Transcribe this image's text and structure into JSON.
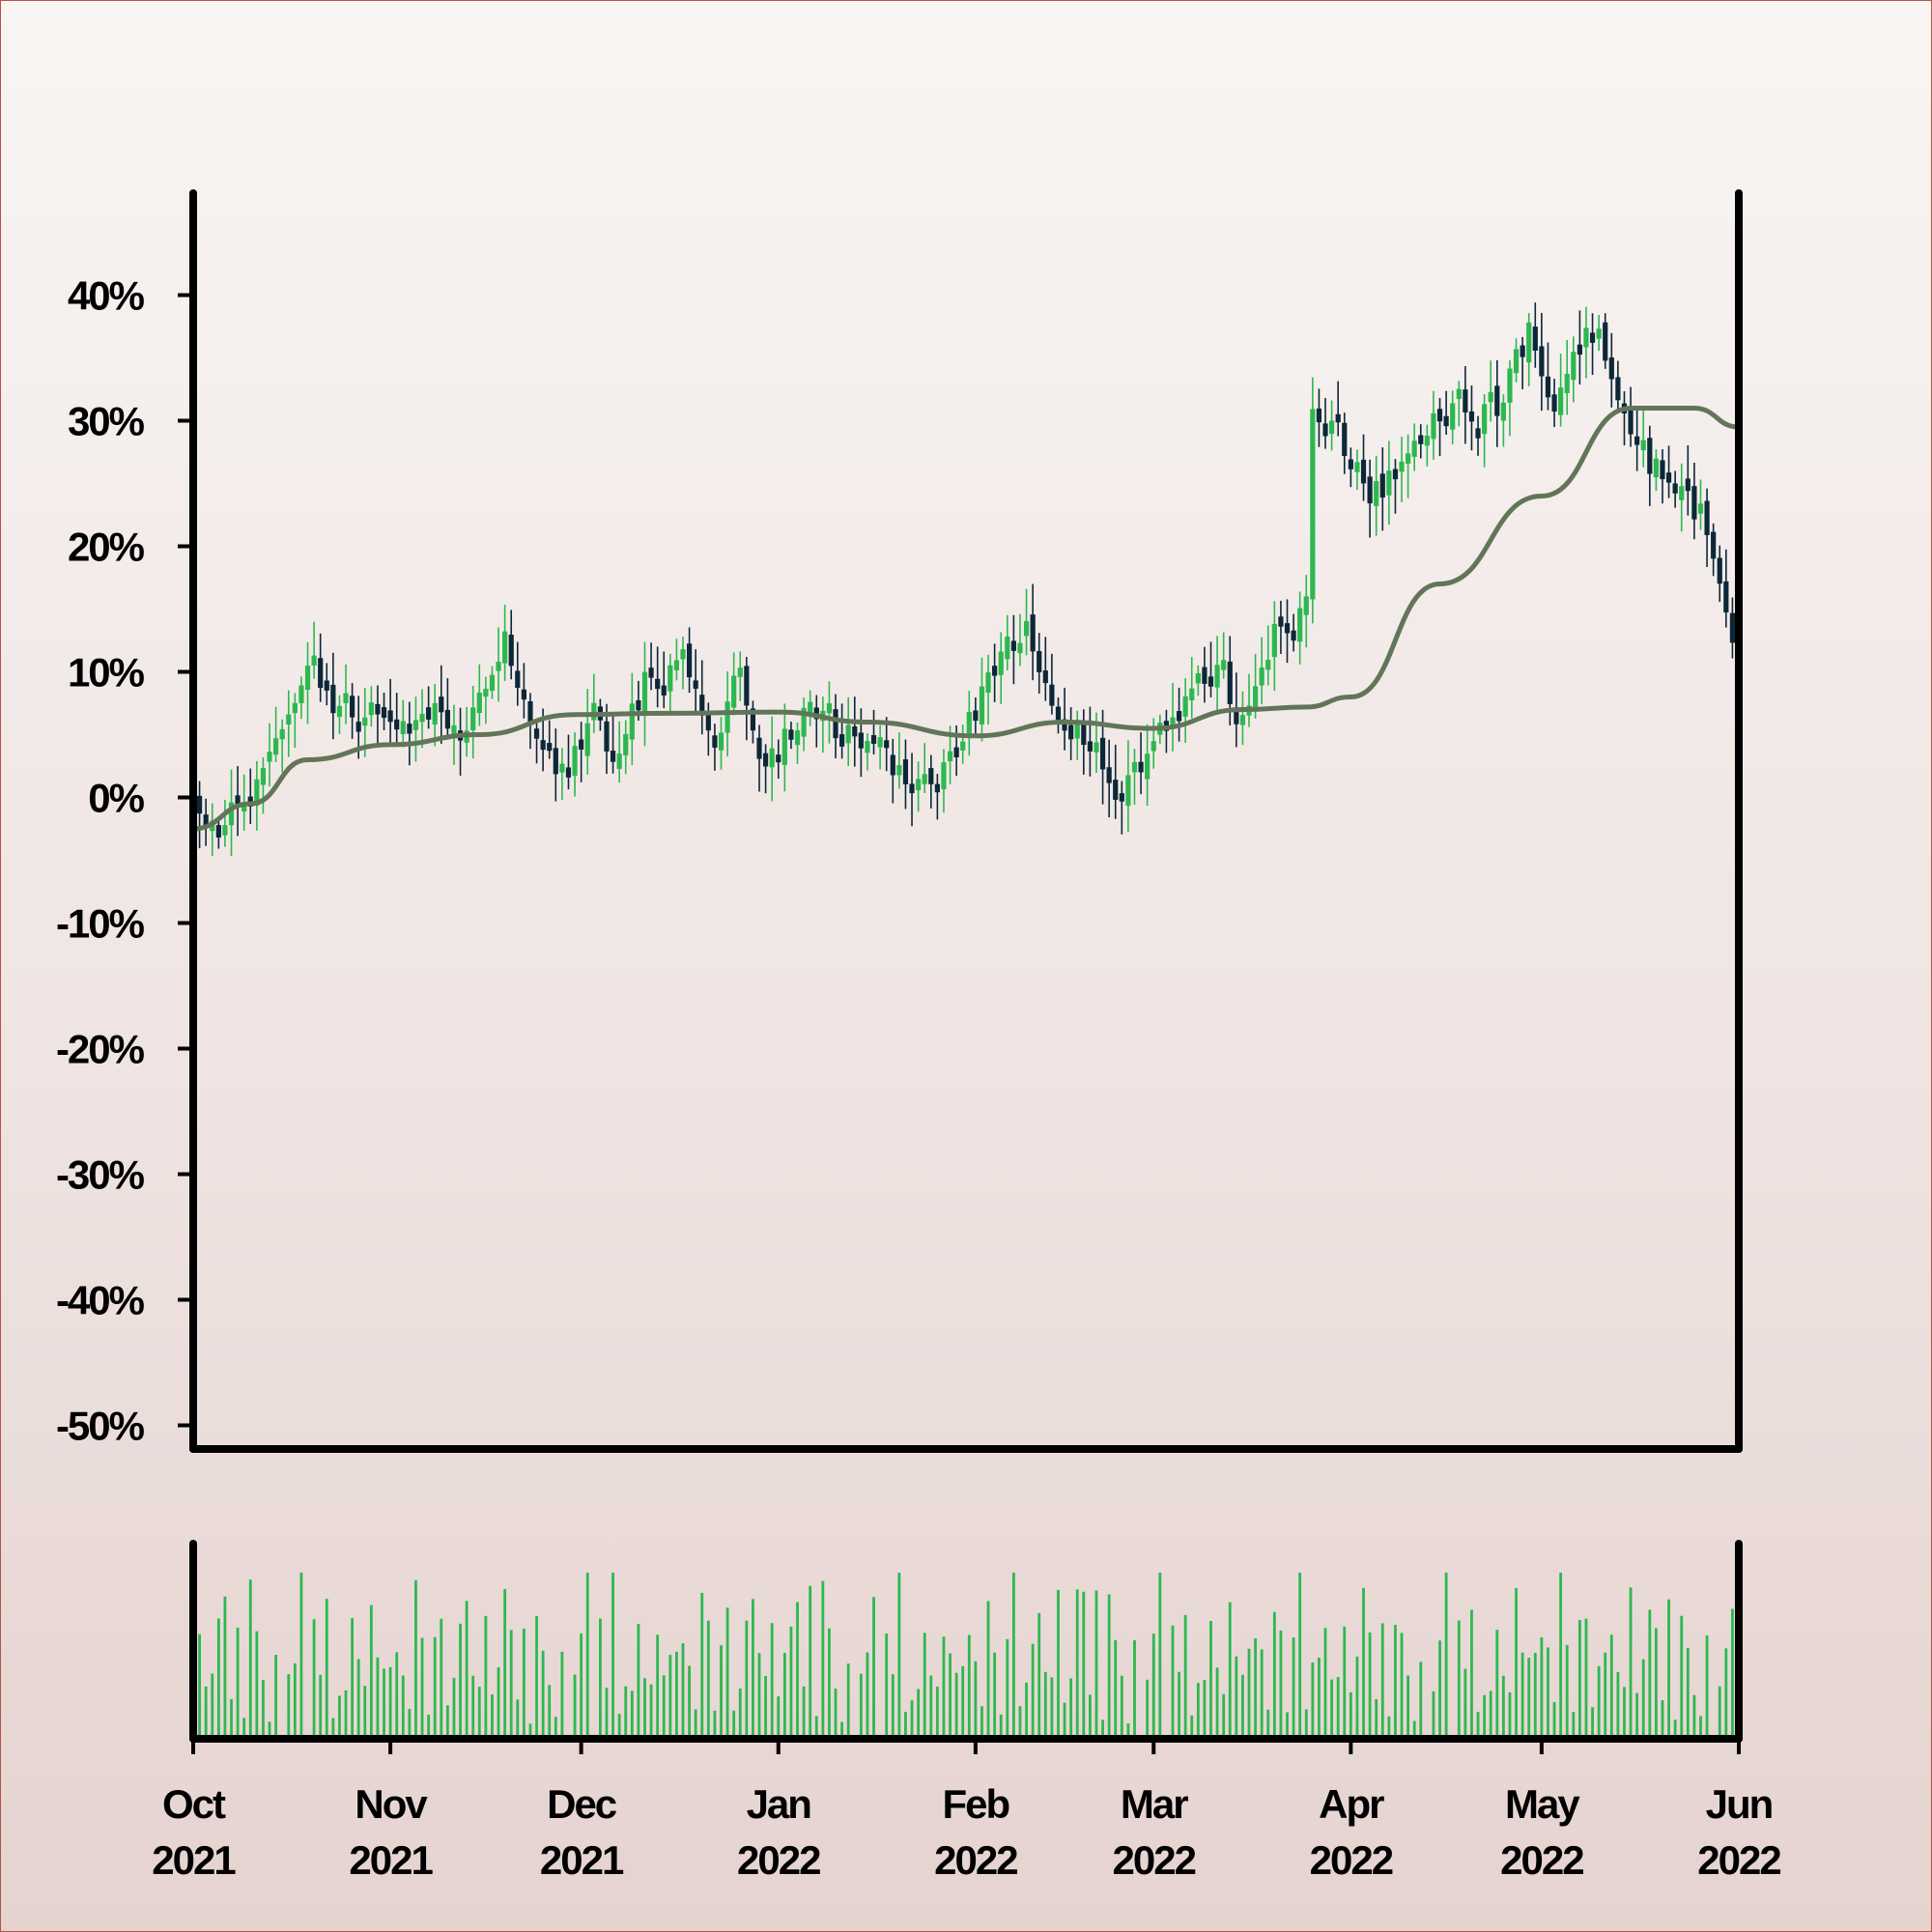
{
  "chart_data": {
    "type": "candlestick",
    "title": "",
    "xlabel": "",
    "ylabel": "",
    "y_axis_format": "percent",
    "ylim": [
      -55,
      46
    ],
    "y_ticks": [
      "40%",
      "30%",
      "20%",
      "10%",
      "0%",
      "-10%",
      "-20%",
      "-30%",
      "-40%",
      "-50%"
    ],
    "y_tick_values": [
      40,
      30,
      20,
      10,
      0,
      -10,
      -20,
      -30,
      -40,
      -50
    ],
    "xlim": [
      "2021-10-01",
      "2022-06-01"
    ],
    "x_ticks": [
      {
        "month": "Oct",
        "year": "2021",
        "date": "2021-10-01"
      },
      {
        "month": "Nov",
        "year": "2021",
        "date": "2021-11-01"
      },
      {
        "month": "Dec",
        "year": "2021",
        "date": "2021-12-01"
      },
      {
        "month": "Jan",
        "year": "2022",
        "date": "2022-01-01"
      },
      {
        "month": "Feb",
        "year": "2022",
        "date": "2022-02-01"
      },
      {
        "month": "Mar",
        "year": "2022",
        "date": "2022-03-01"
      },
      {
        "month": "Apr",
        "year": "2022",
        "date": "2022-04-01"
      },
      {
        "month": "May",
        "year": "2022",
        "date": "2022-05-01"
      },
      {
        "month": "Jun",
        "year": "2022",
        "date": "2022-06-01"
      }
    ],
    "close_keypoints": [
      [
        "2021-10-01",
        -1
      ],
      [
        "2021-10-05",
        -3
      ],
      [
        "2021-10-10",
        1
      ],
      [
        "2021-10-15",
        5
      ],
      [
        "2021-10-19",
        10
      ],
      [
        "2021-10-23",
        7
      ],
      [
        "2021-10-30",
        7
      ],
      [
        "2021-11-04",
        5
      ],
      [
        "2021-11-08",
        7
      ],
      [
        "2021-11-13",
        5
      ],
      [
        "2021-11-19",
        13
      ],
      [
        "2021-11-24",
        5
      ],
      [
        "2021-11-28",
        2
      ],
      [
        "2021-12-03",
        7
      ],
      [
        "2021-12-06",
        2
      ],
      [
        "2021-12-11",
        10
      ],
      [
        "2021-12-17",
        10
      ],
      [
        "2021-12-22",
        5
      ],
      [
        "2021-12-26",
        10
      ],
      [
        "2021-12-30",
        2
      ],
      [
        "2022-01-05",
        7
      ],
      [
        "2022-01-10",
        5
      ],
      [
        "2022-01-15",
        5
      ],
      [
        "2022-01-20",
        2
      ],
      [
        "2022-01-25",
        0
      ],
      [
        "2022-02-01",
        7
      ],
      [
        "2022-02-06",
        13
      ],
      [
        "2022-02-09",
        13
      ],
      [
        "2022-02-13",
        7
      ],
      [
        "2022-02-17",
        5
      ],
      [
        "2022-02-23",
        0
      ],
      [
        "2022-02-27",
        2
      ],
      [
        "2022-03-04",
        7
      ],
      [
        "2022-03-09",
        10
      ],
      [
        "2022-03-12",
        10
      ],
      [
        "2022-03-15",
        5
      ],
      [
        "2022-03-20",
        13
      ],
      [
        "2022-03-25",
        16
      ],
      [
        "2022-03-26",
        30
      ],
      [
        "2022-03-30",
        29
      ],
      [
        "2022-04-04",
        24
      ],
      [
        "2022-04-09",
        26
      ],
      [
        "2022-04-15",
        31
      ],
      [
        "2022-04-24",
        31
      ],
      [
        "2022-04-29",
        37
      ],
      [
        "2022-05-03",
        31
      ],
      [
        "2022-05-08",
        38
      ],
      [
        "2022-05-12",
        34
      ],
      [
        "2022-05-17",
        27
      ],
      [
        "2022-05-22",
        25
      ],
      [
        "2022-05-26",
        22
      ],
      [
        "2022-06-01",
        10
      ]
    ],
    "moving_average": [
      [
        "2021-10-01",
        -2.5
      ],
      [
        "2021-10-10",
        -0.5
      ],
      [
        "2021-10-19",
        3
      ],
      [
        "2021-11-01",
        4.2
      ],
      [
        "2021-11-15",
        5
      ],
      [
        "2021-11-30",
        6.6
      ],
      [
        "2021-12-15",
        6.7
      ],
      [
        "2022-01-01",
        6.8
      ],
      [
        "2022-01-15",
        6
      ],
      [
        "2022-02-01",
        4.9
      ],
      [
        "2022-02-15",
        6
      ],
      [
        "2022-03-01",
        5.5
      ],
      [
        "2022-03-15",
        7
      ],
      [
        "2022-03-25",
        7.2
      ],
      [
        "2022-04-01",
        8
      ],
      [
        "2022-04-15",
        17
      ],
      [
        "2022-05-01",
        24
      ],
      [
        "2022-05-15",
        31
      ],
      [
        "2022-05-25",
        31
      ],
      [
        "2022-06-01",
        29.5
      ]
    ],
    "volume_pattern": [
      0.4,
      0.15,
      0.48,
      0.72,
      0.98,
      0.55,
      0.85,
      0.8,
      0.63,
      0.2,
      0.48,
      0.15,
      0.02,
      0.6,
      0.28,
      0.75,
      0.95,
      0.52,
      0.3,
      0.7,
      0.35,
      0.88,
      0.45,
      0.22,
      0.65,
      0.8,
      0.38,
      0.57,
      0.12,
      0.9
    ],
    "colors": {
      "up": "#2db84f",
      "down": "#0c2738",
      "moving_average": "#627558",
      "volume": "#2db84f",
      "axis": "#000000",
      "frame_border": "#b3534a"
    }
  }
}
